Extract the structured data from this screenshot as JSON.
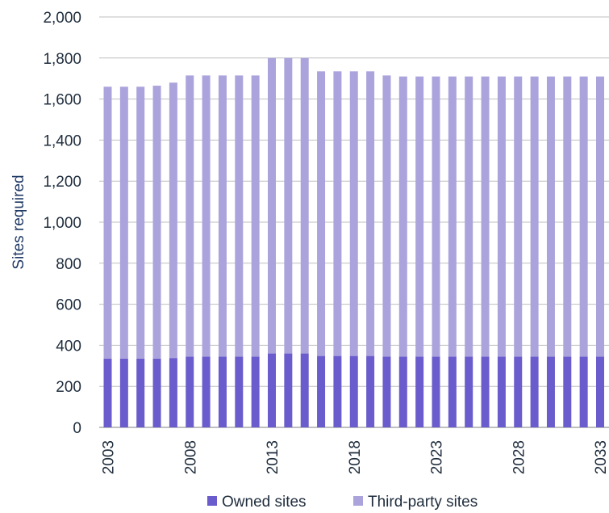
{
  "chart_data": {
    "type": "bar",
    "stacked": true,
    "ylabel": "Sites required",
    "ylim": [
      0,
      2000
    ],
    "yticks": [
      0,
      200,
      400,
      600,
      800,
      1000,
      1200,
      1400,
      1600,
      1800,
      2000
    ],
    "ytick_labels": [
      "0",
      "200",
      "400",
      "600",
      "800",
      "1,000",
      "1,200",
      "1,400",
      "1,600",
      "1,800",
      "2,000"
    ],
    "xtick_labels": [
      "2003",
      "2008",
      "2013",
      "2018",
      "2023",
      "2028",
      "2033"
    ],
    "categories": [
      "2003",
      "2004",
      "2005",
      "2006",
      "2007",
      "2008",
      "2009",
      "2010",
      "2011",
      "2012",
      "2013",
      "2014",
      "2015",
      "2016",
      "2017",
      "2018",
      "2019",
      "2020",
      "2021",
      "2022",
      "2023",
      "2024",
      "2025",
      "2026",
      "2027",
      "2028",
      "2029",
      "2030",
      "2031",
      "2032",
      "2033"
    ],
    "series": [
      {
        "name": "Owned sites",
        "color": "#6a5ccc",
        "values": [
          335,
          335,
          335,
          335,
          338,
          345,
          345,
          345,
          345,
          345,
          360,
          360,
          360,
          348,
          348,
          348,
          348,
          345,
          345,
          345,
          345,
          345,
          345,
          345,
          345,
          345,
          345,
          345,
          345,
          345,
          345
        ]
      },
      {
        "name": "Third-party sites",
        "color": "#aba4dc",
        "values": [
          1325,
          1325,
          1325,
          1330,
          1342,
          1370,
          1370,
          1370,
          1370,
          1370,
          1440,
          1440,
          1440,
          1387,
          1387,
          1387,
          1387,
          1370,
          1365,
          1365,
          1365,
          1365,
          1365,
          1365,
          1365,
          1365,
          1365,
          1365,
          1365,
          1365,
          1365
        ]
      }
    ],
    "grid": true,
    "legend": "bottom"
  }
}
